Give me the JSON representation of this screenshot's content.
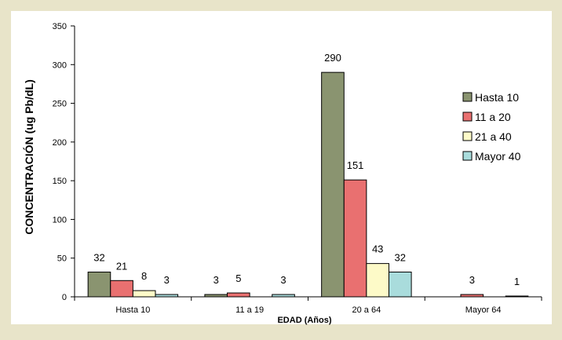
{
  "chart_data": {
    "type": "bar",
    "title": "",
    "xlabel": "EDAD (Años)",
    "ylabel": "CONCENTRACIÓN (ug Pb/dL)",
    "categories": [
      "Hasta 10",
      "11 a 19",
      "20 a 64",
      "Mayor 64"
    ],
    "ylim": [
      0,
      350
    ],
    "yticks": [
      0,
      50,
      100,
      150,
      200,
      250,
      300,
      350
    ],
    "grid": false,
    "legend_position": "right",
    "series": [
      {
        "name": "Hasta 10",
        "color": "#8a9470",
        "values": [
          32,
          3,
          290,
          null
        ],
        "labels": [
          "32",
          "3",
          "290",
          ""
        ]
      },
      {
        "name": "11 a 20",
        "color": "#e97070",
        "values": [
          21,
          5,
          151,
          3
        ],
        "labels": [
          "21",
          "5",
          "151",
          "3"
        ]
      },
      {
        "name": "21 a 40",
        "color": "#fdfac8",
        "values": [
          8,
          null,
          43,
          null
        ],
        "labels": [
          "8",
          "",
          "43",
          ""
        ]
      },
      {
        "name": "Mayor 40",
        "color": "#a9dcdc",
        "values": [
          3,
          3,
          32,
          1
        ],
        "labels": [
          "3",
          "3",
          "32",
          "1"
        ]
      }
    ]
  }
}
